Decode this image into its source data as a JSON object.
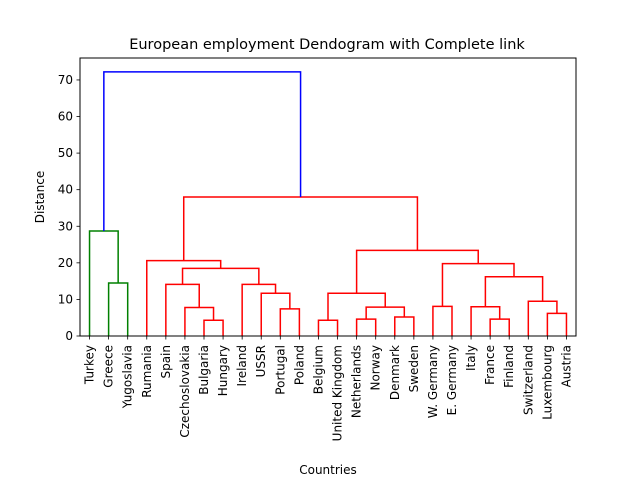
{
  "chart_data": {
    "type": "dendrogram",
    "title": "European employment Dendogram with Complete link",
    "xlabel": "Countries",
    "ylabel": "Distance",
    "ylim": [
      0,
      76
    ],
    "yticks": [
      0,
      10,
      20,
      30,
      40,
      50,
      60,
      70
    ],
    "grid": false,
    "leaves": [
      "Turkey",
      "Greece",
      "Yugoslavia",
      "Rumania",
      "Spain",
      "Czechoslovakia",
      "Bulgaria",
      "Hungary",
      "Ireland",
      "USSR",
      "Portugal",
      "Poland",
      "Belgium",
      "United Kingdom",
      "Netherlands",
      "Norway",
      "Denmark",
      "Sweden",
      "W. Germany",
      "E. Germany",
      "Italy",
      "France",
      "Finland",
      "Switzerland",
      "Luxembourg",
      "Austria"
    ],
    "colors": {
      "cluster_1": "#008000",
      "cluster_2": "#ff0000",
      "root": "#0000ff"
    },
    "merges": [
      {
        "id": "m1",
        "left": "Greece",
        "right": "Yugoslavia",
        "height": 14.5,
        "color": "#008000"
      },
      {
        "id": "m2",
        "left": "Turkey",
        "right": "m1",
        "height": 28.7,
        "color": "#008000"
      },
      {
        "id": "m3",
        "left": "Bulgaria",
        "right": "Hungary",
        "height": 4.3,
        "color": "#ff0000"
      },
      {
        "id": "m4",
        "left": "Czechoslovakia",
        "right": "m3",
        "height": 7.8,
        "color": "#ff0000"
      },
      {
        "id": "m5",
        "left": "Spain",
        "right": "m4",
        "height": 14.1,
        "color": "#ff0000"
      },
      {
        "id": "m6",
        "left": "Portugal",
        "right": "Poland",
        "height": 7.4,
        "color": "#ff0000"
      },
      {
        "id": "m7",
        "left": "USSR",
        "right": "m6",
        "height": 11.7,
        "color": "#ff0000"
      },
      {
        "id": "m8",
        "left": "Ireland",
        "right": "m7",
        "height": 14.1,
        "color": "#ff0000"
      },
      {
        "id": "m9",
        "left": "m5",
        "right": "m8",
        "height": 18.5,
        "color": "#ff0000"
      },
      {
        "id": "m10",
        "left": "Rumania",
        "right": "m9",
        "height": 20.6,
        "color": "#ff0000"
      },
      {
        "id": "m11",
        "left": "Belgium",
        "right": "United Kingdom",
        "height": 4.3,
        "color": "#ff0000"
      },
      {
        "id": "m12",
        "left": "Netherlands",
        "right": "Norway",
        "height": 4.6,
        "color": "#ff0000"
      },
      {
        "id": "m13",
        "left": "Denmark",
        "right": "Sweden",
        "height": 5.2,
        "color": "#ff0000"
      },
      {
        "id": "m14",
        "left": "m12",
        "right": "m13",
        "height": 7.9,
        "color": "#ff0000"
      },
      {
        "id": "m15",
        "left": "m11",
        "right": "m14",
        "height": 11.7,
        "color": "#ff0000"
      },
      {
        "id": "m16",
        "left": "W. Germany",
        "right": "E. Germany",
        "height": 8.1,
        "color": "#ff0000"
      },
      {
        "id": "m17",
        "left": "France",
        "right": "Finland",
        "height": 4.6,
        "color": "#ff0000"
      },
      {
        "id": "m18",
        "left": "Italy",
        "right": "m17",
        "height": 8.0,
        "color": "#ff0000"
      },
      {
        "id": "m19",
        "left": "Luxembourg",
        "right": "Austria",
        "height": 6.2,
        "color": "#ff0000"
      },
      {
        "id": "m20",
        "left": "Switzerland",
        "right": "m19",
        "height": 9.5,
        "color": "#ff0000"
      },
      {
        "id": "m21",
        "left": "m18",
        "right": "m20",
        "height": 16.2,
        "color": "#ff0000"
      },
      {
        "id": "m22",
        "left": "m16",
        "right": "m21",
        "height": 19.8,
        "color": "#ff0000"
      },
      {
        "id": "m23",
        "left": "m15",
        "right": "m22",
        "height": 23.4,
        "color": "#ff0000"
      },
      {
        "id": "m24",
        "left": "m10",
        "right": "m23",
        "height": 38.0,
        "color": "#ff0000"
      },
      {
        "id": "m25",
        "left": "m2",
        "right": "m24",
        "height": 72.2,
        "color": "#0000ff"
      }
    ]
  }
}
